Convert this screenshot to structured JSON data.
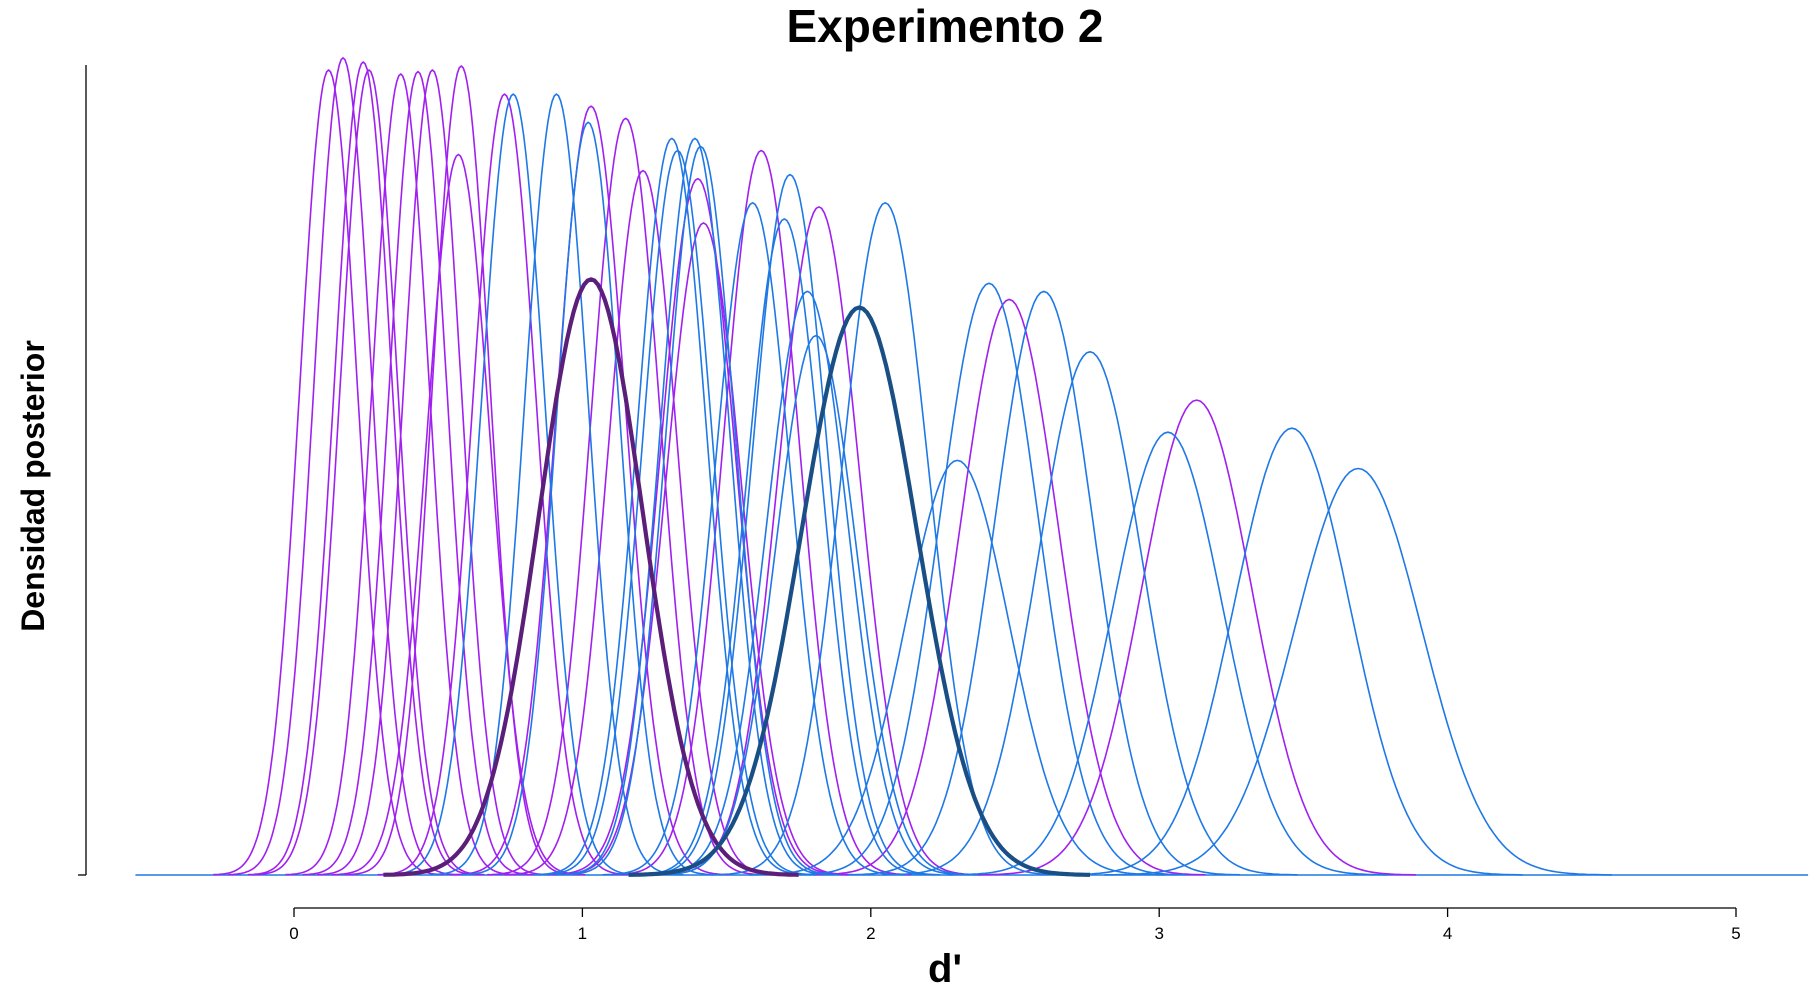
{
  "chart_data": {
    "type": "line",
    "title": "Experimento 2",
    "xlabel": "d'",
    "ylabel": "Densidad posterior",
    "xlim": [
      -0.55,
      5.25
    ],
    "ylim": [
      0,
      1.0
    ],
    "x_ticks": [
      "0",
      "1",
      "2",
      "3",
      "4",
      "5"
    ],
    "y_ticks_labeled": false,
    "grid": false,
    "legend": "none",
    "colors": {
      "group_a": "#a020f0",
      "group_b": "#1e78e6",
      "group_a_mean": "#5b1f7a",
      "group_b_mean": "#1a4f86"
    },
    "series": [
      {
        "group": "a",
        "mean": 0.12,
        "sd": 0.1,
        "peak": 1.0
      },
      {
        "group": "a",
        "mean": 0.17,
        "sd": 0.1,
        "peak": 1.015
      },
      {
        "group": "a",
        "mean": 0.24,
        "sd": 0.1,
        "peak": 1.01
      },
      {
        "group": "a",
        "mean": 0.26,
        "sd": 0.1,
        "peak": 1.0
      },
      {
        "group": "a",
        "mean": 0.37,
        "sd": 0.1,
        "peak": 0.995
      },
      {
        "group": "a",
        "mean": 0.43,
        "sd": 0.1,
        "peak": 0.998
      },
      {
        "group": "a",
        "mean": 0.48,
        "sd": 0.1,
        "peak": 1.0
      },
      {
        "group": "a",
        "mean": 0.58,
        "sd": 0.1,
        "peak": 1.005
      },
      {
        "group": "a",
        "mean": 0.57,
        "sd": 0.11,
        "peak": 0.895
      },
      {
        "group": "a",
        "mean": 0.73,
        "sd": 0.11,
        "peak": 0.97
      },
      {
        "group": "a",
        "mean": 1.03,
        "sd": 0.12,
        "peak": 0.955
      },
      {
        "group": "a",
        "mean": 1.15,
        "sd": 0.12,
        "peak": 0.94
      },
      {
        "group": "a",
        "mean": 1.21,
        "sd": 0.12,
        "peak": 0.875
      },
      {
        "group": "a",
        "mean": 1.4,
        "sd": 0.13,
        "peak": 0.865
      },
      {
        "group": "a",
        "mean": 1.42,
        "sd": 0.13,
        "peak": 0.81
      },
      {
        "group": "a",
        "mean": 1.62,
        "sd": 0.13,
        "peak": 0.9
      },
      {
        "group": "a",
        "mean": 1.82,
        "sd": 0.14,
        "peak": 0.83
      },
      {
        "group": "a",
        "mean": 2.48,
        "sd": 0.17,
        "peak": 0.715
      },
      {
        "group": "a",
        "mean": 3.13,
        "sd": 0.19,
        "peak": 0.59
      },
      {
        "group": "b",
        "mean": 0.76,
        "sd": 0.11,
        "peak": 0.97
      },
      {
        "group": "b",
        "mean": 0.91,
        "sd": 0.11,
        "peak": 0.97
      },
      {
        "group": "b",
        "mean": 1.02,
        "sd": 0.11,
        "peak": 0.935
      },
      {
        "group": "b",
        "mean": 1.31,
        "sd": 0.12,
        "peak": 0.915
      },
      {
        "group": "b",
        "mean": 1.33,
        "sd": 0.12,
        "peak": 0.9
      },
      {
        "group": "b",
        "mean": 1.39,
        "sd": 0.12,
        "peak": 0.915
      },
      {
        "group": "b",
        "mean": 1.41,
        "sd": 0.12,
        "peak": 0.905
      },
      {
        "group": "b",
        "mean": 1.59,
        "sd": 0.13,
        "peak": 0.835
      },
      {
        "group": "b",
        "mean": 1.72,
        "sd": 0.13,
        "peak": 0.87
      },
      {
        "group": "b",
        "mean": 1.7,
        "sd": 0.13,
        "peak": 0.815
      },
      {
        "group": "b",
        "mean": 1.78,
        "sd": 0.14,
        "peak": 0.725
      },
      {
        "group": "b",
        "mean": 1.81,
        "sd": 0.14,
        "peak": 0.67
      },
      {
        "group": "b",
        "mean": 2.05,
        "sd": 0.15,
        "peak": 0.835
      },
      {
        "group": "b",
        "mean": 2.3,
        "sd": 0.18,
        "peak": 0.515
      },
      {
        "group": "b",
        "mean": 2.41,
        "sd": 0.17,
        "peak": 0.735
      },
      {
        "group": "b",
        "mean": 2.6,
        "sd": 0.17,
        "peak": 0.725
      },
      {
        "group": "b",
        "mean": 2.76,
        "sd": 0.18,
        "peak": 0.65
      },
      {
        "group": "b",
        "mean": 3.03,
        "sd": 0.19,
        "peak": 0.55
      },
      {
        "group": "b",
        "mean": 3.46,
        "sd": 0.2,
        "peak": 0.555
      },
      {
        "group": "b",
        "mean": 3.69,
        "sd": 0.22,
        "peak": 0.505
      },
      {
        "group": "a_mean",
        "mean": 1.03,
        "sd": 0.18,
        "peak": 0.74,
        "bold": true
      },
      {
        "group": "b_mean",
        "mean": 1.96,
        "sd": 0.2,
        "peak": 0.705,
        "bold": true
      }
    ]
  }
}
